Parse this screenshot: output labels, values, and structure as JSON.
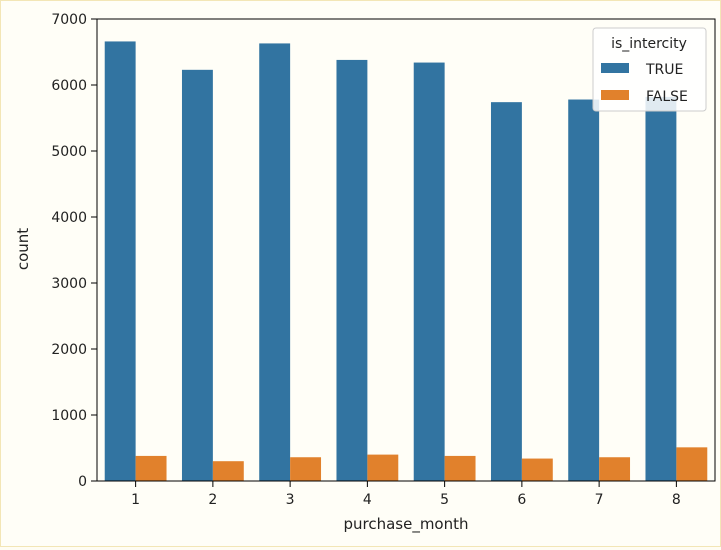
{
  "chart_data": {
    "type": "bar",
    "xlabel": "purchase_month",
    "ylabel": "count",
    "categories": [
      "1",
      "2",
      "3",
      "4",
      "5",
      "6",
      "7",
      "8"
    ],
    "series": [
      {
        "name": "TRUE",
        "color": "#3274a1",
        "values": [
          6660,
          6230,
          6630,
          6380,
          6340,
          5740,
          5780,
          5820
        ]
      },
      {
        "name": "FALSE",
        "color": "#e1812c",
        "values": [
          380,
          300,
          360,
          400,
          380,
          340,
          360,
          510
        ]
      }
    ],
    "ylim": [
      0,
      7000
    ],
    "yticks": [
      "0",
      "1000",
      "2000",
      "3000",
      "4000",
      "5000",
      "6000",
      "7000"
    ],
    "grid": false,
    "legend": {
      "title": "is_intercity",
      "placement": "top-right"
    }
  }
}
